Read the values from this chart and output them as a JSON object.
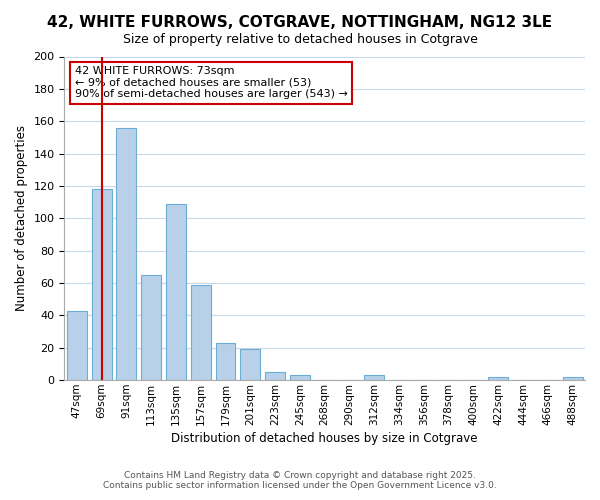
{
  "title": "42, WHITE FURROWS, COTGRAVE, NOTTINGHAM, NG12 3LE",
  "subtitle": "Size of property relative to detached houses in Cotgrave",
  "xlabel": "Distribution of detached houses by size in Cotgrave",
  "ylabel": "Number of detached properties",
  "bar_color": "#b8d0e8",
  "bar_edge_color": "#6aaed6",
  "background_color": "#ffffff",
  "grid_color": "#c8d8e8",
  "annotation_box_color": "#ffffff",
  "annotation_border_color": "#cc0000",
  "vline_color": "#cc0000",
  "vline_x": 1.0,
  "categories": [
    "47sqm",
    "69sqm",
    "91sqm",
    "113sqm",
    "135sqm",
    "157sqm",
    "179sqm",
    "201sqm",
    "223sqm",
    "245sqm",
    "268sqm",
    "290sqm",
    "312sqm",
    "334sqm",
    "356sqm",
    "378sqm",
    "400sqm",
    "422sqm",
    "444sqm",
    "466sqm",
    "488sqm"
  ],
  "values": [
    43,
    118,
    156,
    65,
    109,
    59,
    23,
    19,
    5,
    3,
    0,
    0,
    3,
    0,
    0,
    0,
    0,
    2,
    0,
    0,
    2
  ],
  "ylim": [
    0,
    200
  ],
  "yticks": [
    0,
    20,
    40,
    60,
    80,
    100,
    120,
    140,
    160,
    180,
    200
  ],
  "annotation_lines": [
    "42 WHITE FURROWS: 73sqm",
    "← 9% of detached houses are smaller (53)",
    "90% of semi-detached houses are larger (543) →"
  ],
  "footer_lines": [
    "Contains HM Land Registry data © Crown copyright and database right 2025.",
    "Contains public sector information licensed under the Open Government Licence v3.0."
  ]
}
